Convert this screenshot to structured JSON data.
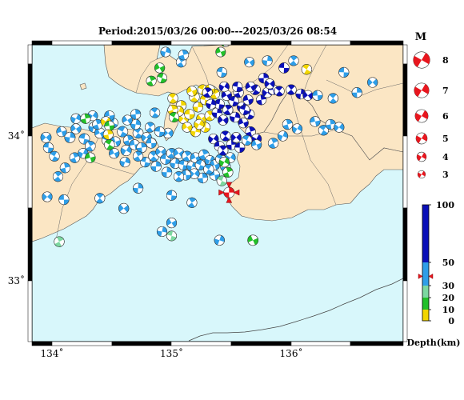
{
  "title": "Period:2015/03/26 00:00---2025/03/26 08:54",
  "axes": {
    "x_ticks": [
      {
        "value": 134,
        "label": "134˚"
      },
      {
        "value": 135,
        "label": "135˚"
      },
      {
        "value": 136,
        "label": "136˚"
      }
    ],
    "y_ticks": [
      {
        "value": 34,
        "label": "34˚"
      },
      {
        "value": 33,
        "label": "33˚"
      }
    ]
  },
  "magnitude_legend": {
    "heading": "M",
    "items": [
      {
        "m": 8,
        "label": "8"
      },
      {
        "m": 7,
        "label": "7"
      },
      {
        "m": 6,
        "label": "6"
      },
      {
        "m": 5,
        "label": "5"
      },
      {
        "m": 4,
        "label": "4"
      },
      {
        "m": 3,
        "label": "3"
      }
    ]
  },
  "depth_scale": {
    "title": "Depth(km)",
    "ticks": [
      {
        "value": 100,
        "label": "100"
      },
      {
        "value": 50,
        "label": "50"
      },
      {
        "value": 30,
        "label": "30"
      },
      {
        "value": 20,
        "label": "20"
      },
      {
        "value": 10,
        "label": "10"
      },
      {
        "value": 0,
        "label": "0"
      }
    ],
    "bands": [
      {
        "from": 0,
        "to": 10,
        "color": "#f2d600"
      },
      {
        "from": 10,
        "to": 20,
        "color": "#22c02a"
      },
      {
        "from": 20,
        "to": 30,
        "color": "#7cd8a0"
      },
      {
        "from": 30,
        "to": 50,
        "color": "#2e9ee8"
      },
      {
        "from": 50,
        "to": 100,
        "color": "#0a10b8"
      }
    ],
    "marker_depth": 38
  },
  "colors": {
    "sea": "#d8f7fb",
    "land": "#fbe6c4",
    "coast": "#333333",
    "current_event": "#e8161e"
  },
  "events": [
    {
      "lon": 135.48,
      "lat": 33.61,
      "depth": 38,
      "mag": 3.2,
      "color": "#e8161e",
      "current": true
    },
    {
      "lon": 133.95,
      "lat": 33.99,
      "depth": 45,
      "mag": 2.9
    },
    {
      "lon": 133.97,
      "lat": 33.92,
      "depth": 45,
      "mag": 2.6
    },
    {
      "lon": 134.05,
      "lat": 33.72,
      "depth": 45,
      "mag": 2.5
    },
    {
      "lon": 134.15,
      "lat": 33.99,
      "depth": 45,
      "mag": 3.0
    },
    {
      "lon": 134.2,
      "lat": 34.05,
      "depth": 45,
      "mag": 2.6
    },
    {
      "lon": 134.27,
      "lat": 33.98,
      "depth": 45,
      "mag": 3.0
    },
    {
      "lon": 134.32,
      "lat": 33.93,
      "depth": 45,
      "mag": 2.7
    },
    {
      "lon": 134.35,
      "lat": 34.06,
      "depth": 45,
      "mag": 2.6
    },
    {
      "lon": 134.4,
      "lat": 34.02,
      "depth": 45,
      "mag": 2.8
    },
    {
      "lon": 134.46,
      "lat": 33.97,
      "depth": 45,
      "mag": 2.6
    },
    {
      "lon": 134.19,
      "lat": 33.85,
      "depth": 45,
      "mag": 2.6
    },
    {
      "lon": 134.26,
      "lat": 33.88,
      "depth": 45,
      "mag": 2.5
    },
    {
      "lon": 134.53,
      "lat": 33.96,
      "depth": 45,
      "mag": 2.6
    },
    {
      "lon": 134.59,
      "lat": 34.03,
      "depth": 45,
      "mag": 3.0
    },
    {
      "lon": 134.64,
      "lat": 33.97,
      "depth": 45,
      "mag": 2.8
    },
    {
      "lon": 134.62,
      "lat": 33.9,
      "depth": 45,
      "mag": 3.0
    },
    {
      "lon": 134.69,
      "lat": 33.94,
      "depth": 45,
      "mag": 2.6
    },
    {
      "lon": 134.72,
      "lat": 34.02,
      "depth": 45,
      "mag": 2.8
    },
    {
      "lon": 134.75,
      "lat": 33.92,
      "depth": 45,
      "mag": 2.6
    },
    {
      "lon": 134.79,
      "lat": 33.99,
      "depth": 45,
      "mag": 2.5
    },
    {
      "lon": 134.83,
      "lat": 33.95,
      "depth": 45,
      "mag": 2.6
    },
    {
      "lon": 134.85,
      "lat": 33.86,
      "depth": 45,
      "mag": 2.7
    },
    {
      "lon": 134.87,
      "lat": 33.79,
      "depth": 45,
      "mag": 2.6
    },
    {
      "lon": 134.91,
      "lat": 33.89,
      "depth": 45,
      "mag": 2.6
    },
    {
      "lon": 134.95,
      "lat": 33.84,
      "depth": 45,
      "mag": 2.8
    },
    {
      "lon": 135.0,
      "lat": 33.88,
      "depth": 45,
      "mag": 2.6
    },
    {
      "lon": 135.03,
      "lat": 33.81,
      "depth": 45,
      "mag": 2.5
    },
    {
      "lon": 135.06,
      "lat": 33.88,
      "depth": 45,
      "mag": 3.0
    },
    {
      "lon": 135.1,
      "lat": 33.8,
      "depth": 45,
      "mag": 2.6
    },
    {
      "lon": 135.13,
      "lat": 33.86,
      "depth": 45,
      "mag": 2.7
    },
    {
      "lon": 135.17,
      "lat": 33.79,
      "depth": 45,
      "mag": 2.6
    },
    {
      "lon": 135.2,
      "lat": 33.85,
      "depth": 45,
      "mag": 2.6
    },
    {
      "lon": 135.24,
      "lat": 33.8,
      "depth": 45,
      "mag": 2.6
    },
    {
      "lon": 135.27,
      "lat": 33.87,
      "depth": 45,
      "mag": 2.7
    },
    {
      "lon": 135.32,
      "lat": 33.83,
      "depth": 45,
      "mag": 2.6
    },
    {
      "lon": 135.36,
      "lat": 33.8,
      "depth": 45,
      "mag": 2.7
    },
    {
      "lon": 135.41,
      "lat": 33.84,
      "depth": 45,
      "mag": 2.6
    },
    {
      "lon": 135.45,
      "lat": 33.79,
      "depth": 45,
      "mag": 2.6
    },
    {
      "lon": 135.49,
      "lat": 33.85,
      "depth": 45,
      "mag": 2.7
    },
    {
      "lon": 135.36,
      "lat": 33.73,
      "depth": 45,
      "mag": 2.6
    },
    {
      "lon": 135.31,
      "lat": 33.77,
      "depth": 45,
      "mag": 2.6
    },
    {
      "lon": 135.26,
      "lat": 33.71,
      "depth": 45,
      "mag": 2.6
    },
    {
      "lon": 135.19,
      "lat": 33.74,
      "depth": 45,
      "mag": 2.6
    },
    {
      "lon": 135.12,
      "lat": 33.73,
      "depth": 45,
      "mag": 2.6
    },
    {
      "lon": 135.06,
      "lat": 33.72,
      "depth": 45,
      "mag": 2.5
    },
    {
      "lon": 134.96,
      "lat": 33.75,
      "depth": 45,
      "mag": 2.6
    },
    {
      "lon": 134.97,
      "lat": 34.02,
      "depth": 45,
      "mag": 2.5
    },
    {
      "lon": 134.9,
      "lat": 34.03,
      "depth": 45,
      "mag": 2.5
    },
    {
      "lon": 134.82,
      "lat": 34.06,
      "depth": 45,
      "mag": 2.5
    },
    {
      "lon": 134.7,
      "lat": 34.08,
      "depth": 45,
      "mag": 2.5
    },
    {
      "lon": 134.63,
      "lat": 34.11,
      "depth": 45,
      "mag": 2.5
    },
    {
      "lon": 134.78,
      "lat": 33.82,
      "depth": 45,
      "mag": 2.5
    },
    {
      "lon": 134.72,
      "lat": 33.86,
      "depth": 45,
      "mag": 2.5
    },
    {
      "lon": 134.61,
      "lat": 33.82,
      "depth": 45,
      "mag": 2.5
    },
    {
      "lon": 134.52,
      "lat": 33.88,
      "depth": 45,
      "mag": 2.5
    },
    {
      "lon": 134.51,
      "lat": 34.09,
      "depth": 45,
      "mag": 2.5
    },
    {
      "lon": 134.38,
      "lat": 34.08,
      "depth": 45,
      "mag": 2.5
    },
    {
      "lon": 134.2,
      "lat": 34.12,
      "depth": 45,
      "mag": 2.5
    },
    {
      "lon": 134.08,
      "lat": 34.03,
      "depth": 45,
      "mag": 2.5
    },
    {
      "lon": 134.02,
      "lat": 33.86,
      "depth": 45,
      "mag": 2.5
    },
    {
      "lon": 134.11,
      "lat": 33.78,
      "depth": 45,
      "mag": 2.5
    },
    {
      "lon": 134.34,
      "lat": 34.14,
      "depth": 45,
      "mag": 2.5
    },
    {
      "lon": 134.48,
      "lat": 34.14,
      "depth": 45,
      "mag": 2.5
    },
    {
      "lon": 134.86,
      "lat": 34.16,
      "depth": 45,
      "mag": 2.5
    },
    {
      "lon": 134.7,
      "lat": 34.15,
      "depth": 45,
      "mag": 2.5
    },
    {
      "lon": 133.96,
      "lat": 33.58,
      "depth": 45,
      "mag": 2.5
    },
    {
      "lon": 134.1,
      "lat": 33.56,
      "depth": 45,
      "mag": 2.5
    },
    {
      "lon": 134.4,
      "lat": 33.57,
      "depth": 45,
      "mag": 2.5
    },
    {
      "lon": 134.72,
      "lat": 33.64,
      "depth": 45,
      "mag": 2.5
    },
    {
      "lon": 134.6,
      "lat": 33.5,
      "depth": 45,
      "mag": 2.6
    },
    {
      "lon": 135.0,
      "lat": 33.59,
      "depth": 45,
      "mag": 2.5
    },
    {
      "lon": 135.17,
      "lat": 33.54,
      "depth": 45,
      "mag": 2.5
    },
    {
      "lon": 134.92,
      "lat": 33.34,
      "depth": 45,
      "mag": 2.5
    },
    {
      "lon": 135.0,
      "lat": 33.4,
      "depth": 45,
      "mag": 2.5
    },
    {
      "lon": 135.0,
      "lat": 33.31,
      "depth": 25,
      "mag": 2.4
    },
    {
      "lon": 134.06,
      "lat": 33.27,
      "depth": 25,
      "mag": 2.6
    },
    {
      "lon": 135.4,
      "lat": 33.28,
      "depth": 45,
      "mag": 2.6
    },
    {
      "lon": 135.68,
      "lat": 33.28,
      "depth": 15,
      "mag": 2.9
    },
    {
      "lon": 135.42,
      "lat": 33.69,
      "depth": 25,
      "mag": 2.5
    },
    {
      "lon": 135.47,
      "lat": 33.75,
      "depth": 15,
      "mag": 2.6
    },
    {
      "lon": 135.44,
      "lat": 33.82,
      "depth": 15,
      "mag": 2.5
    },
    {
      "lon": 134.32,
      "lat": 33.85,
      "depth": 15,
      "mag": 2.6
    },
    {
      "lon": 134.48,
      "lat": 33.94,
      "depth": 15,
      "mag": 2.7
    },
    {
      "lon": 134.28,
      "lat": 34.12,
      "depth": 15,
      "mag": 2.4
    },
    {
      "lon": 134.45,
      "lat": 34.1,
      "depth": 5,
      "mag": 2.5
    },
    {
      "lon": 134.48,
      "lat": 34.07,
      "depth": 15,
      "mag": 2.4
    },
    {
      "lon": 135.01,
      "lat": 34.26,
      "depth": 5,
      "mag": 2.6
    },
    {
      "lon": 135.08,
      "lat": 34.21,
      "depth": 5,
      "mag": 2.6
    },
    {
      "lon": 135.1,
      "lat": 34.12,
      "depth": 5,
      "mag": 2.6
    },
    {
      "lon": 135.15,
      "lat": 34.15,
      "depth": 5,
      "mag": 2.6
    },
    {
      "lon": 135.19,
      "lat": 34.27,
      "depth": 5,
      "mag": 2.7
    },
    {
      "lon": 135.22,
      "lat": 34.2,
      "depth": 5,
      "mag": 2.5
    },
    {
      "lon": 135.25,
      "lat": 34.12,
      "depth": 5,
      "mag": 2.6
    },
    {
      "lon": 135.28,
      "lat": 34.25,
      "depth": 5,
      "mag": 2.5
    },
    {
      "lon": 135.32,
      "lat": 34.14,
      "depth": 5,
      "mag": 2.6
    },
    {
      "lon": 135.2,
      "lat": 34.03,
      "depth": 5,
      "mag": 2.6
    },
    {
      "lon": 135.13,
      "lat": 34.06,
      "depth": 5,
      "mag": 2.5
    },
    {
      "lon": 135.28,
      "lat": 34.06,
      "depth": 5,
      "mag": 2.5
    },
    {
      "lon": 135.36,
      "lat": 34.29,
      "depth": 5,
      "mag": 2.5
    },
    {
      "lon": 135.06,
      "lat": 34.17,
      "depth": 5,
      "mag": 2.5
    },
    {
      "lon": 135.17,
      "lat": 34.31,
      "depth": 5,
      "mag": 2.5
    },
    {
      "lon": 135.26,
      "lat": 34.32,
      "depth": 5,
      "mag": 2.5
    },
    {
      "lon": 135.01,
      "lat": 34.18,
      "depth": 5,
      "mag": 2.5
    },
    {
      "lon": 135.23,
      "lat": 34.08,
      "depth": 5,
      "mag": 2.5
    },
    {
      "lon": 135.32,
      "lat": 34.32,
      "depth": 5,
      "mag": 2.5
    },
    {
      "lon": 136.13,
      "lat": 34.46,
      "depth": 5,
      "mag": 2.6
    },
    {
      "lon": 134.47,
      "lat": 34.01,
      "depth": 5,
      "mag": 2.4
    },
    {
      "lon": 135.35,
      "lat": 33.98,
      "depth": 75,
      "mag": 2.5
    },
    {
      "lon": 135.4,
      "lat": 33.93,
      "depth": 75,
      "mag": 2.6
    },
    {
      "lon": 135.45,
      "lat": 34.0,
      "depth": 75,
      "mag": 2.6
    },
    {
      "lon": 135.5,
      "lat": 33.94,
      "depth": 75,
      "mag": 2.5
    },
    {
      "lon": 135.54,
      "lat": 33.99,
      "depth": 75,
      "mag": 2.6
    },
    {
      "lon": 135.57,
      "lat": 33.92,
      "depth": 75,
      "mag": 2.5
    },
    {
      "lon": 135.43,
      "lat": 33.9,
      "depth": 75,
      "mag": 2.5
    },
    {
      "lon": 135.38,
      "lat": 34.16,
      "depth": 75,
      "mag": 2.6
    },
    {
      "lon": 135.43,
      "lat": 34.11,
      "depth": 75,
      "mag": 2.7
    },
    {
      "lon": 135.4,
      "lat": 34.22,
      "depth": 75,
      "mag": 2.5
    },
    {
      "lon": 135.47,
      "lat": 34.18,
      "depth": 75,
      "mag": 2.5
    },
    {
      "lon": 135.53,
      "lat": 34.13,
      "depth": 75,
      "mag": 2.6
    },
    {
      "lon": 135.46,
      "lat": 34.28,
      "depth": 75,
      "mag": 2.6
    },
    {
      "lon": 135.52,
      "lat": 34.24,
      "depth": 75,
      "mag": 2.5
    },
    {
      "lon": 135.56,
      "lat": 34.3,
      "depth": 75,
      "mag": 2.5
    },
    {
      "lon": 135.59,
      "lat": 34.2,
      "depth": 75,
      "mag": 2.6
    },
    {
      "lon": 135.6,
      "lat": 34.09,
      "depth": 75,
      "mag": 2.5
    },
    {
      "lon": 135.65,
      "lat": 34.15,
      "depth": 75,
      "mag": 2.5
    },
    {
      "lon": 135.66,
      "lat": 34.03,
      "depth": 75,
      "mag": 2.6
    },
    {
      "lon": 135.71,
      "lat": 33.98,
      "depth": 75,
      "mag": 2.5
    },
    {
      "lon": 135.64,
      "lat": 34.25,
      "depth": 75,
      "mag": 2.5
    },
    {
      "lon": 135.7,
      "lat": 34.32,
      "depth": 75,
      "mag": 2.7
    },
    {
      "lon": 135.75,
      "lat": 34.25,
      "depth": 75,
      "mag": 2.5
    },
    {
      "lon": 135.8,
      "lat": 34.3,
      "depth": 75,
      "mag": 2.6
    },
    {
      "lon": 135.85,
      "lat": 34.32,
      "depth": 75,
      "mag": 2.5
    },
    {
      "lon": 135.9,
      "lat": 34.31,
      "depth": 75,
      "mag": 2.5
    },
    {
      "lon": 135.77,
      "lat": 34.4,
      "depth": 75,
      "mag": 2.6
    },
    {
      "lon": 135.82,
      "lat": 34.36,
      "depth": 75,
      "mag": 2.5
    },
    {
      "lon": 135.94,
      "lat": 34.47,
      "depth": 75,
      "mag": 2.8
    },
    {
      "lon": 136.0,
      "lat": 34.32,
      "depth": 75,
      "mag": 2.6
    },
    {
      "lon": 136.08,
      "lat": 34.29,
      "depth": 75,
      "mag": 2.6
    },
    {
      "lon": 136.14,
      "lat": 34.28,
      "depth": 75,
      "mag": 2.5
    },
    {
      "lon": 135.55,
      "lat": 34.34,
      "depth": 75,
      "mag": 2.5
    },
    {
      "lon": 135.3,
      "lat": 34.3,
      "depth": 75,
      "mag": 2.4
    },
    {
      "lon": 135.33,
      "lat": 34.22,
      "depth": 75,
      "mag": 2.4
    },
    {
      "lon": 135.66,
      "lat": 34.34,
      "depth": 75,
      "mag": 2.5
    },
    {
      "lon": 135.61,
      "lat": 34.18,
      "depth": 75,
      "mag": 2.5
    },
    {
      "lon": 135.85,
      "lat": 33.95,
      "depth": 45,
      "mag": 2.6
    },
    {
      "lon": 135.93,
      "lat": 34.0,
      "depth": 45,
      "mag": 2.5
    },
    {
      "lon": 135.71,
      "lat": 33.94,
      "depth": 45,
      "mag": 2.5
    },
    {
      "lon": 135.63,
      "lat": 33.97,
      "depth": 45,
      "mag": 2.5
    },
    {
      "lon": 135.97,
      "lat": 34.08,
      "depth": 45,
      "mag": 2.6
    },
    {
      "lon": 136.05,
      "lat": 34.05,
      "depth": 45,
      "mag": 2.5
    },
    {
      "lon": 136.2,
      "lat": 34.1,
      "depth": 45,
      "mag": 2.6
    },
    {
      "lon": 136.27,
      "lat": 34.04,
      "depth": 45,
      "mag": 2.5
    },
    {
      "lon": 136.33,
      "lat": 34.08,
      "depth": 45,
      "mag": 2.5
    },
    {
      "lon": 136.4,
      "lat": 34.06,
      "depth": 45,
      "mag": 2.5
    },
    {
      "lon": 136.22,
      "lat": 34.28,
      "depth": 45,
      "mag": 2.5
    },
    {
      "lon": 136.35,
      "lat": 34.26,
      "depth": 45,
      "mag": 2.5
    },
    {
      "lon": 136.55,
      "lat": 34.3,
      "depth": 45,
      "mag": 2.5
    },
    {
      "lon": 136.68,
      "lat": 34.37,
      "depth": 45,
      "mag": 2.5
    },
    {
      "lon": 136.44,
      "lat": 34.44,
      "depth": 45,
      "mag": 2.5
    },
    {
      "lon": 136.02,
      "lat": 34.52,
      "depth": 45,
      "mag": 2.5
    },
    {
      "lon": 135.8,
      "lat": 34.52,
      "depth": 45,
      "mag": 2.5
    },
    {
      "lon": 135.65,
      "lat": 34.51,
      "depth": 45,
      "mag": 2.4
    },
    {
      "lon": 135.42,
      "lat": 34.44,
      "depth": 45,
      "mag": 2.5
    },
    {
      "lon": 135.08,
      "lat": 34.51,
      "depth": 45,
      "mag": 2.5
    },
    {
      "lon": 134.95,
      "lat": 34.58,
      "depth": 45,
      "mag": 2.4
    },
    {
      "lon": 134.9,
      "lat": 34.47,
      "depth": 15,
      "mag": 2.5
    },
    {
      "lon": 134.92,
      "lat": 34.4,
      "depth": 15,
      "mag": 2.4
    },
    {
      "lon": 134.83,
      "lat": 34.38,
      "depth": 15,
      "mag": 2.4
    },
    {
      "lon": 135.45,
      "lat": 34.65,
      "depth": 15,
      "mag": 2.4
    },
    {
      "lon": 135.41,
      "lat": 34.58,
      "depth": 15,
      "mag": 2.3
    },
    {
      "lon": 135.02,
      "lat": 34.13,
      "depth": 15,
      "mag": 2.4
    },
    {
      "lon": 135.1,
      "lat": 34.56,
      "depth": 45,
      "mag": 2.6
    },
    {
      "lon": 135.44,
      "lat": 34.34,
      "depth": 75,
      "mag": 2.5
    }
  ]
}
